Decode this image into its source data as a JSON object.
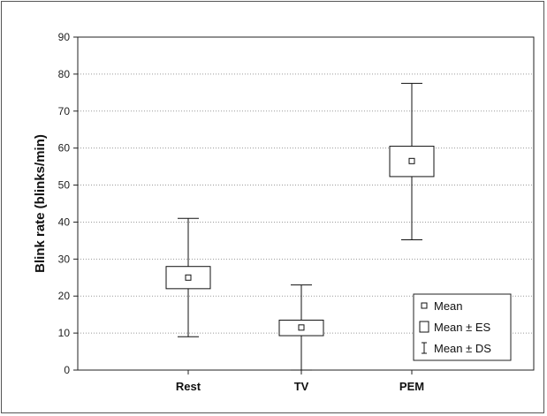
{
  "chart_data": {
    "type": "box",
    "title": "",
    "xlabel": "",
    "ylabel": "Blink rate (blinks/min)",
    "ylim": [
      0,
      90
    ],
    "yticks": [
      0,
      10,
      20,
      30,
      40,
      50,
      60,
      70,
      80,
      90
    ],
    "grid": "horizontal dotted",
    "categories": [
      "Rest",
      "TV",
      "PEM"
    ],
    "mean": [
      25,
      11.5,
      56.5
    ],
    "mean_plus_es": [
      28,
      13.5,
      60.5
    ],
    "mean_minus_es": [
      22,
      9.3,
      52.3
    ],
    "mean_plus_ds": [
      41,
      23,
      77.5
    ],
    "mean_minus_ds": [
      9,
      0,
      35.2
    ],
    "legend": {
      "position": "bottom-right",
      "entries": [
        "Mean",
        "Mean ± ES",
        "Mean ± DS"
      ]
    }
  }
}
